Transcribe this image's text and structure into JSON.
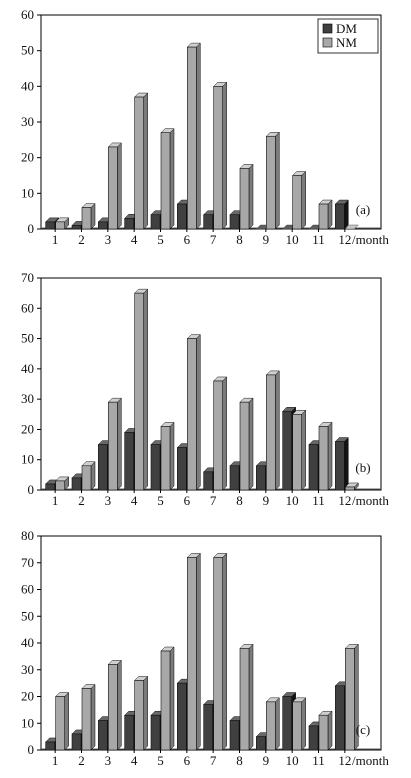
{
  "colors": {
    "dm": "#404040",
    "nm": "#a8a8a8",
    "axis": "#000000"
  },
  "chart_data": [
    {
      "type": "bar",
      "panel_label": "(a)",
      "categories": [
        "1",
        "2",
        "3",
        "4",
        "5",
        "6",
        "7",
        "8",
        "9",
        "10",
        "11",
        "12"
      ],
      "xlabel": "/month",
      "ylim": [
        0,
        60
      ],
      "yticks": [
        0,
        10,
        20,
        30,
        40,
        50,
        60
      ],
      "legend": {
        "position": "top-right",
        "entries": [
          "DM",
          "NM"
        ]
      },
      "series": [
        {
          "name": "DM",
          "values": [
            2,
            1,
            2,
            3,
            4,
            7,
            4,
            4,
            0,
            0,
            0,
            7
          ]
        },
        {
          "name": "NM",
          "values": [
            2,
            6,
            23,
            37,
            27,
            51,
            40,
            17,
            26,
            15,
            7,
            0
          ]
        }
      ]
    },
    {
      "type": "bar",
      "panel_label": "(b)",
      "categories": [
        "1",
        "2",
        "3",
        "4",
        "5",
        "6",
        "7",
        "8",
        "9",
        "10",
        "11",
        "12"
      ],
      "xlabel": "/month",
      "ylim": [
        0,
        70
      ],
      "yticks": [
        0,
        10,
        20,
        30,
        40,
        50,
        60,
        70
      ],
      "series": [
        {
          "name": "DM",
          "values": [
            2,
            4,
            15,
            19,
            15,
            14,
            6,
            8,
            8,
            26,
            15,
            16
          ]
        },
        {
          "name": "NM",
          "values": [
            3,
            8,
            29,
            65,
            21,
            50,
            36,
            29,
            38,
            25,
            21,
            1
          ]
        }
      ]
    },
    {
      "type": "bar",
      "panel_label": "(c)",
      "categories": [
        "1",
        "2",
        "3",
        "4",
        "5",
        "6",
        "7",
        "8",
        "9",
        "10",
        "11",
        "12"
      ],
      "xlabel": "/month",
      "ylim": [
        0,
        80
      ],
      "yticks": [
        0,
        10,
        20,
        30,
        40,
        50,
        60,
        70,
        80
      ],
      "series": [
        {
          "name": "DM",
          "values": [
            3,
            6,
            11,
            13,
            13,
            25,
            17,
            11,
            5,
            20,
            9,
            24
          ]
        },
        {
          "name": "NM",
          "values": [
            20,
            23,
            32,
            26,
            37,
            72,
            72,
            38,
            18,
            18,
            13,
            38
          ]
        }
      ]
    }
  ]
}
